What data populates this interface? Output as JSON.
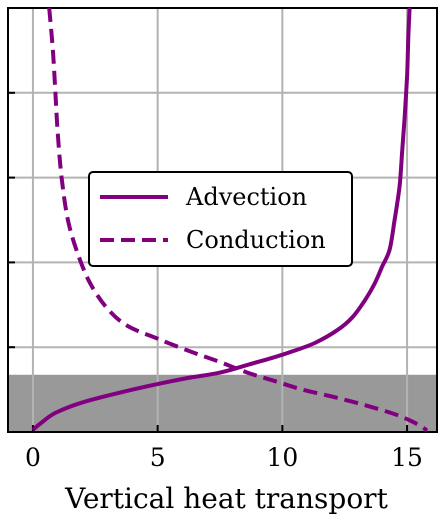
{
  "chart_data": {
    "type": "line",
    "title": "",
    "xlabel": "Vertical heat transport",
    "ylabel": "",
    "xlim": [
      -1,
      16.2
    ],
    "ylim": [
      0,
      1
    ],
    "x_ticks": [
      0,
      5,
      10,
      15
    ],
    "x_tick_labels": [
      "0",
      "5",
      "10",
      "15"
    ],
    "y_ticks": [
      0.2,
      0.4,
      0.6,
      0.8
    ],
    "grid": true,
    "legend_placement": "center",
    "shaded_band": {
      "y_from": 0,
      "y_to": 0.135,
      "color": "#999999"
    },
    "series": [
      {
        "name": "Advection",
        "style": "solid",
        "color": "#800080",
        "x": [
          0.0,
          0.3,
          0.9,
          2.0,
          4.0,
          6.0,
          7.5,
          8.7,
          9.6,
          10.4,
          11.3,
          12.2,
          12.8,
          13.3,
          13.7,
          14.0,
          14.3,
          14.5,
          14.7,
          14.8,
          14.9,
          15.0,
          15.05,
          15.1
        ],
        "y": [
          0.005,
          0.02,
          0.045,
          0.07,
          0.1,
          0.125,
          0.14,
          0.16,
          0.175,
          0.19,
          0.21,
          0.24,
          0.27,
          0.31,
          0.35,
          0.39,
          0.43,
          0.5,
          0.58,
          0.66,
          0.74,
          0.84,
          0.93,
          1.0
        ]
      },
      {
        "name": "Conduction",
        "style": "dashed",
        "color": "#800080",
        "x": [
          0.65,
          0.8,
          0.9,
          1.0,
          1.15,
          1.4,
          1.8,
          2.3,
          3.0,
          3.8,
          5.0,
          6.3,
          7.5,
          8.6,
          9.7,
          10.8,
          11.9,
          12.9,
          13.8,
          14.6,
          15.2,
          15.6,
          15.8
        ],
        "y": [
          1.0,
          0.9,
          0.8,
          0.7,
          0.6,
          0.5,
          0.42,
          0.35,
          0.29,
          0.25,
          0.22,
          0.19,
          0.165,
          0.14,
          0.12,
          0.1,
          0.085,
          0.07,
          0.055,
          0.04,
          0.025,
          0.012,
          0.003
        ]
      }
    ]
  }
}
